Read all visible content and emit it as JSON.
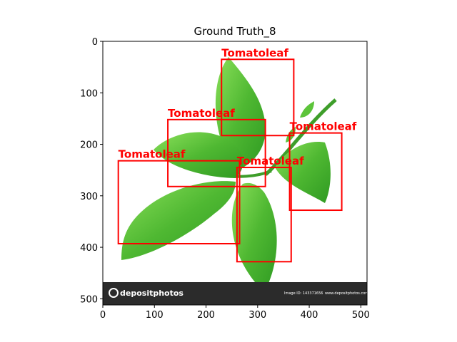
{
  "title": "Ground Truth_8",
  "image": {
    "width": 512,
    "height": 512,
    "description_type": "photo-of-tomato-leaves",
    "watermark_brand": "depositphotos",
    "watermark_image_id": "Image ID: 143371656",
    "watermark_url": "www.depositphotos.com",
    "footer_color": "#2b2b2b",
    "leaf_color": "#5cc43a"
  },
  "axes": {
    "x_ticks": [
      0,
      100,
      200,
      300,
      400,
      500
    ],
    "y_ticks": [
      0,
      100,
      200,
      300,
      400,
      500
    ],
    "xlim": [
      0,
      512
    ],
    "ylim": [
      512,
      0
    ]
  },
  "annotations": [
    {
      "label": "Tomatoleaf",
      "x0": 230,
      "y0": 35,
      "x1": 370,
      "y1": 183
    },
    {
      "label": "Tomatoleaf",
      "x0": 126,
      "y0": 152,
      "x1": 315,
      "y1": 282
    },
    {
      "label": "Tomatoleaf",
      "x0": 362,
      "y0": 178,
      "x1": 463,
      "y1": 328
    },
    {
      "label": "Tomatoleaf",
      "x0": 30,
      "y0": 232,
      "x1": 265,
      "y1": 393
    },
    {
      "label": "Tomatoleaf",
      "x0": 260,
      "y0": 245,
      "x1": 365,
      "y1": 428
    }
  ],
  "box_color": "#ff0000"
}
